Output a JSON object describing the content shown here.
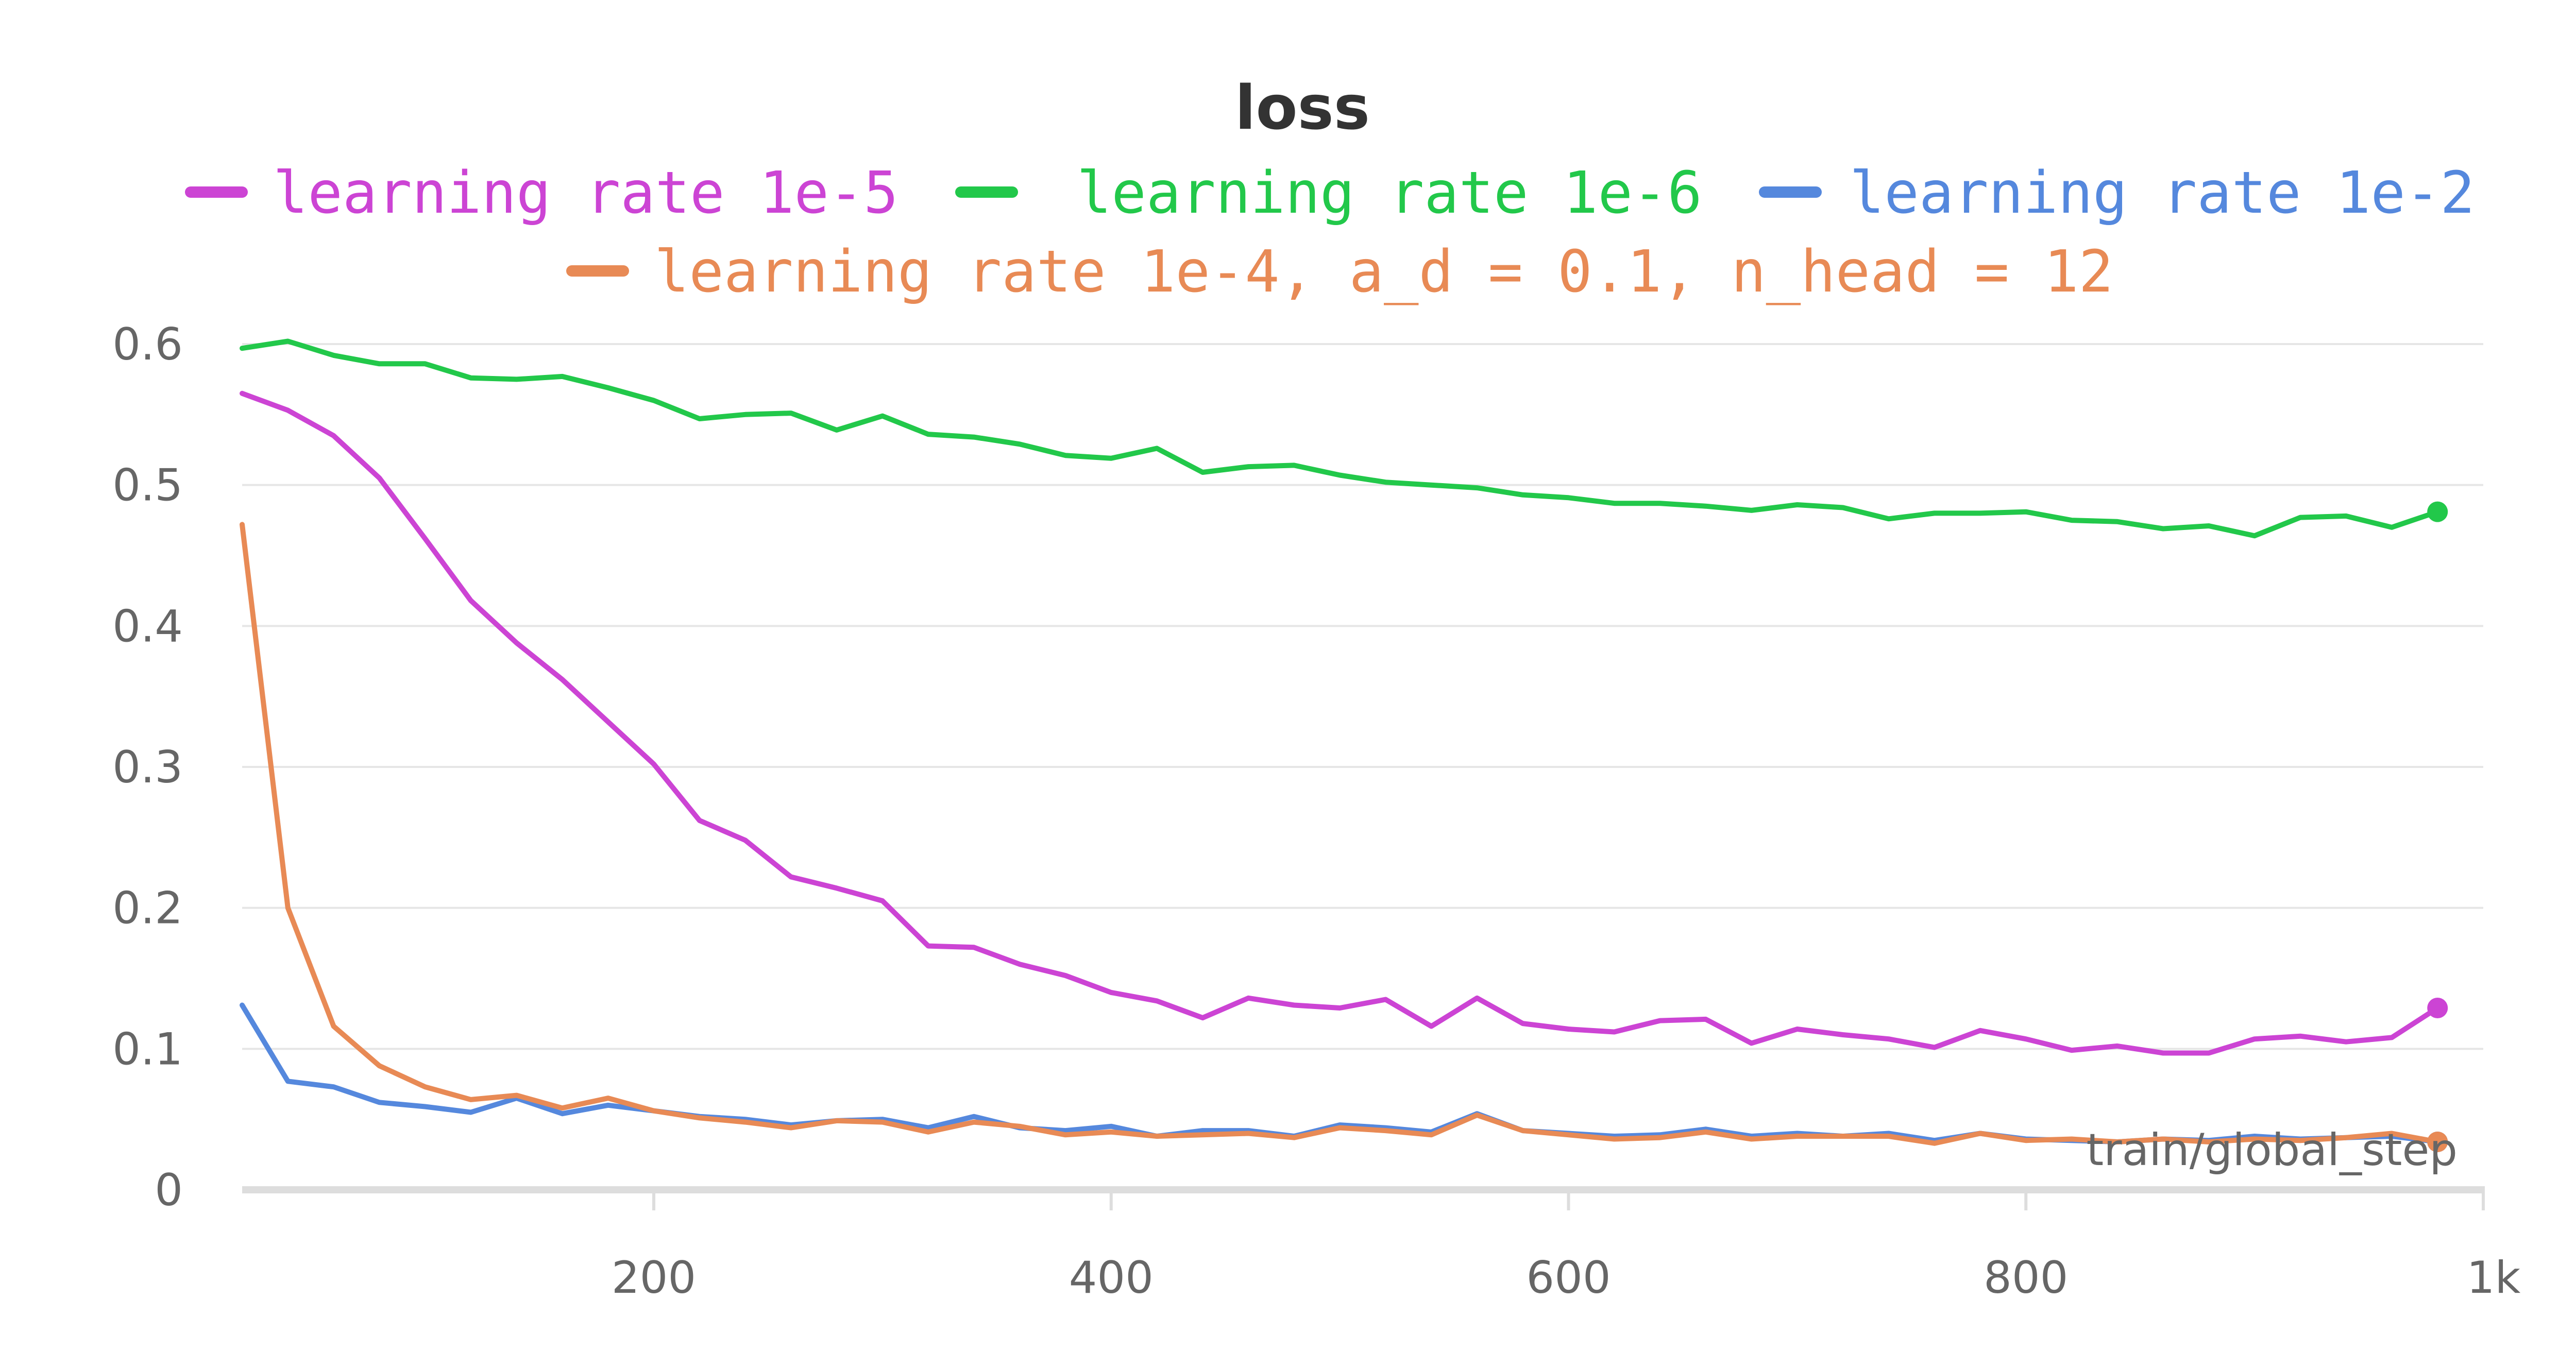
{
  "chart_data": {
    "type": "line",
    "title": "loss",
    "xlabel": "train/global_step",
    "ylabel": "",
    "xlim": [
      20,
      1000
    ],
    "ylim": [
      0,
      0.6
    ],
    "x_ticks": [
      {
        "value": 200,
        "label": "200"
      },
      {
        "value": 400,
        "label": "400"
      },
      {
        "value": 600,
        "label": "600"
      },
      {
        "value": 800,
        "label": "800"
      },
      {
        "value": 1000,
        "label": "1k"
      }
    ],
    "y_ticks": [
      {
        "value": 0,
        "label": "0"
      },
      {
        "value": 0.1,
        "label": "0.1"
      },
      {
        "value": 0.2,
        "label": "0.2"
      },
      {
        "value": 0.3,
        "label": "0.3"
      },
      {
        "value": 0.4,
        "label": "0.4"
      },
      {
        "value": 0.5,
        "label": "0.5"
      },
      {
        "value": 0.6,
        "label": "0.6"
      }
    ],
    "grid": true,
    "legend_position": "top",
    "x": [
      20,
      40,
      60,
      80,
      100,
      120,
      140,
      160,
      180,
      200,
      220,
      240,
      260,
      280,
      300,
      320,
      340,
      360,
      380,
      400,
      420,
      440,
      460,
      480,
      500,
      520,
      540,
      560,
      580,
      600,
      620,
      640,
      660,
      680,
      700,
      720,
      740,
      760,
      780,
      800,
      820,
      840,
      860,
      880,
      900,
      920,
      940,
      960,
      980
    ],
    "series": [
      {
        "name": "learning rate 1e-5",
        "color": "#cc44d4",
        "values": [
          0.565,
          0.553,
          0.535,
          0.505,
          0.462,
          0.418,
          0.388,
          0.362,
          0.332,
          0.302,
          0.262,
          0.248,
          0.222,
          0.214,
          0.205,
          0.173,
          0.172,
          0.16,
          0.152,
          0.14,
          0.134,
          0.122,
          0.136,
          0.131,
          0.129,
          0.135,
          0.116,
          0.136,
          0.118,
          0.114,
          0.112,
          0.12,
          0.121,
          0.104,
          0.114,
          0.11,
          0.107,
          0.101,
          0.113,
          0.107,
          0.099,
          0.102,
          0.097,
          0.097,
          0.107,
          0.109,
          0.105,
          0.108,
          0.129
        ]
      },
      {
        "name": "learning rate 1e-6",
        "color": "#22c84a",
        "values": [
          0.597,
          0.602,
          0.592,
          0.586,
          0.586,
          0.576,
          0.575,
          0.577,
          0.569,
          0.56,
          0.547,
          0.55,
          0.551,
          0.539,
          0.549,
          0.536,
          0.534,
          0.529,
          0.521,
          0.519,
          0.526,
          0.509,
          0.513,
          0.514,
          0.507,
          0.502,
          0.5,
          0.498,
          0.493,
          0.491,
          0.487,
          0.487,
          0.485,
          0.482,
          0.486,
          0.484,
          0.476,
          0.48,
          0.48,
          0.481,
          0.475,
          0.474,
          0.469,
          0.471,
          0.464,
          0.477,
          0.478,
          0.47,
          0.481
        ]
      },
      {
        "name": "learning rate 1e-2",
        "color": "#5588dd",
        "values": [
          0.131,
          0.077,
          0.073,
          0.062,
          0.059,
          0.055,
          0.065,
          0.054,
          0.06,
          0.056,
          0.052,
          0.05,
          0.046,
          0.049,
          0.05,
          0.044,
          0.052,
          0.044,
          0.042,
          0.045,
          0.038,
          0.042,
          0.042,
          0.038,
          0.046,
          0.044,
          0.041,
          0.054,
          0.042,
          0.04,
          0.038,
          0.039,
          0.043,
          0.038,
          0.04,
          0.038,
          0.04,
          0.035,
          0.04,
          0.036,
          0.035,
          0.034,
          0.036,
          0.035,
          0.038,
          0.036,
          0.037,
          0.038,
          0.034
        ]
      },
      {
        "name": "learning rate 1e-4, a_d = 0.1, n_head = 12",
        "color": "#e88a55",
        "values": [
          0.472,
          0.2,
          0.116,
          0.088,
          0.073,
          0.064,
          0.067,
          0.058,
          0.065,
          0.056,
          0.051,
          0.048,
          0.044,
          0.049,
          0.048,
          0.041,
          0.048,
          0.045,
          0.039,
          0.041,
          0.038,
          0.039,
          0.04,
          0.037,
          0.044,
          0.042,
          0.039,
          0.053,
          0.042,
          0.039,
          0.036,
          0.037,
          0.041,
          0.036,
          0.038,
          0.038,
          0.038,
          0.033,
          0.04,
          0.035,
          0.036,
          0.034,
          0.036,
          0.034,
          0.036,
          0.035,
          0.037,
          0.04,
          0.034
        ]
      }
    ]
  }
}
